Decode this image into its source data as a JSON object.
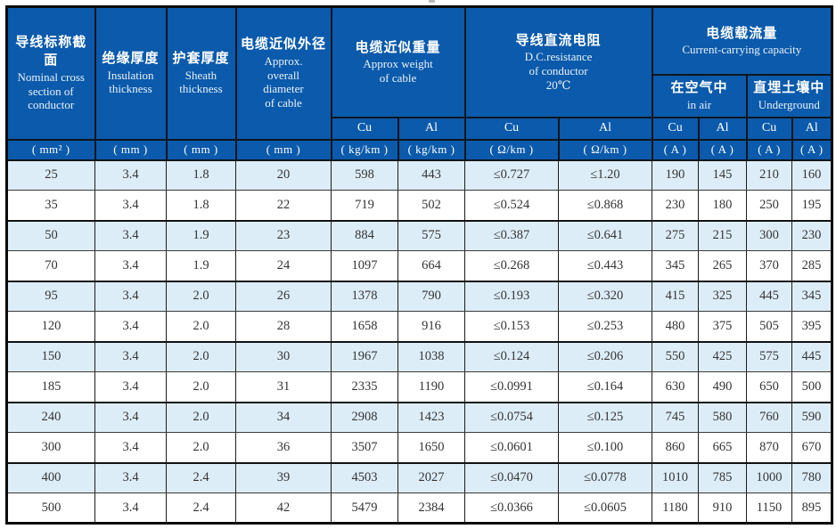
{
  "colors": {
    "header_bg": "#0b5aab",
    "header_text": "#ffffff",
    "alt_row_bg": "#ddedf8",
    "grid_line": "#1c1c1c",
    "data_text": "#343434"
  },
  "header": {
    "nominal": {
      "zh": "导线标称截面",
      "en": "Nominal cross\nsection of\nconductor"
    },
    "insulation": {
      "zh": "绝缘厚度",
      "en": "Insulation\nthickness"
    },
    "sheath": {
      "zh": "护套厚度",
      "en": "Sheath\nthickness"
    },
    "diameter": {
      "zh": "电缆近似外径",
      "en": "Approx.\noverall\ndiameter\nof cable"
    },
    "weight": {
      "zh": "电缆近似重量",
      "en": "Approx weight\nof cable"
    },
    "resistance": {
      "zh": "导线直流电阻",
      "en": "D.C.resistance\nof conductor\n20℃"
    },
    "capacity": {
      "zh": "电缆载流量",
      "en": "Current-carrying capacity"
    },
    "in_air": {
      "zh": "在空气中",
      "en": "in air"
    },
    "underground": {
      "zh": "直埋土壤中",
      "en": "Underground"
    },
    "materials": [
      "Cu",
      "Al",
      "Cu",
      "Al",
      "Cu",
      "Al",
      "Cu",
      "Al"
    ],
    "units": [
      "( mm² )",
      "( mm )",
      "( mm )",
      "( mm )",
      "( kg/km )",
      "( kg/km )",
      "( Ω/km )",
      "( Ω/km )",
      "( A )",
      "( A )",
      "( A )",
      "( A )"
    ]
  },
  "chart_data": {
    "type": "table",
    "columns": [
      "Nominal cross section (mm²)",
      "Insulation thickness (mm)",
      "Sheath thickness (mm)",
      "Approx. overall diameter (mm)",
      "Approx weight Cu (kg/km)",
      "Approx weight Al (kg/km)",
      "D.C. resistance Cu (Ω/km)",
      "D.C. resistance Al (Ω/km)",
      "Capacity in air Cu (A)",
      "Capacity in air Al (A)",
      "Capacity underground Cu (A)",
      "Capacity underground Al (A)"
    ],
    "rows": [
      [
        "25",
        "3.4",
        "1.8",
        "20",
        "598",
        "443",
        "≤0.727",
        "≤1.20",
        "190",
        "145",
        "210",
        "160"
      ],
      [
        "35",
        "3.4",
        "1.8",
        "22",
        "719",
        "502",
        "≤0.524",
        "≤0.868",
        "230",
        "180",
        "250",
        "195"
      ],
      [
        "50",
        "3.4",
        "1.9",
        "23",
        "884",
        "575",
        "≤0.387",
        "≤0.641",
        "275",
        "215",
        "300",
        "230"
      ],
      [
        "70",
        "3.4",
        "1.9",
        "24",
        "1097",
        "664",
        "≤0.268",
        "≤0.443",
        "345",
        "265",
        "370",
        "285"
      ],
      [
        "95",
        "3.4",
        "2.0",
        "26",
        "1378",
        "790",
        "≤0.193",
        "≤0.320",
        "415",
        "325",
        "445",
        "345"
      ],
      [
        "120",
        "3.4",
        "2.0",
        "28",
        "1658",
        "916",
        "≤0.153",
        "≤0.253",
        "480",
        "375",
        "505",
        "395"
      ],
      [
        "150",
        "3.4",
        "2.0",
        "30",
        "1967",
        "1038",
        "≤0.124",
        "≤0.206",
        "550",
        "425",
        "575",
        "445"
      ],
      [
        "185",
        "3.4",
        "2.0",
        "31",
        "2335",
        "1190",
        "≤0.0991",
        "≤0.164",
        "630",
        "490",
        "650",
        "500"
      ],
      [
        "240",
        "3.4",
        "2.0",
        "34",
        "2908",
        "1423",
        "≤0.0754",
        "≤0.125",
        "745",
        "580",
        "760",
        "590"
      ],
      [
        "300",
        "3.4",
        "2.0",
        "36",
        "3507",
        "1650",
        "≤0.0601",
        "≤0.100",
        "860",
        "665",
        "870",
        "670"
      ],
      [
        "400",
        "3.4",
        "2.4",
        "39",
        "4503",
        "2027",
        "≤0.0470",
        "≤0.0778",
        "1010",
        "785",
        "1000",
        "780"
      ],
      [
        "500",
        "3.4",
        "2.4",
        "42",
        "5479",
        "2384",
        "≤0.0366",
        "≤0.0605",
        "1180",
        "910",
        "1150",
        "895"
      ]
    ]
  }
}
